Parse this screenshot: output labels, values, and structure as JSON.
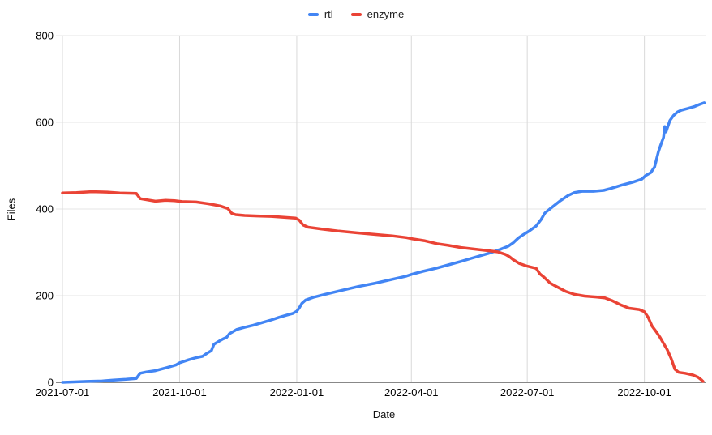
{
  "chart_data": {
    "type": "line",
    "title": "",
    "xlabel": "Date",
    "ylabel": "Files",
    "legend_position": "top-center",
    "grid": true,
    "ylim": [
      0,
      800
    ],
    "y_ticks": [
      0,
      200,
      400,
      600,
      800
    ],
    "x_ticks": [
      "2021-07-01",
      "2021-10-01",
      "2022-01-01",
      "2022-04-01",
      "2022-07-01",
      "2022-10-01"
    ],
    "x_domain": [
      "2021-07-01",
      "2022-11-18"
    ],
    "colors": {
      "grid_h": "#e6e6e6",
      "grid_v": "#d9d9d9",
      "axis_line": "#424242",
      "tick_text": "#000000"
    },
    "series": [
      {
        "name": "rtl",
        "color": "#4285f4",
        "points": [
          [
            "2021-07-01",
            0
          ],
          [
            "2021-07-10",
            1
          ],
          [
            "2021-07-20",
            2
          ],
          [
            "2021-08-01",
            3
          ],
          [
            "2021-08-10",
            5
          ],
          [
            "2021-08-20",
            7
          ],
          [
            "2021-08-28",
            9
          ],
          [
            "2021-08-31",
            21
          ],
          [
            "2021-09-05",
            24
          ],
          [
            "2021-09-12",
            27
          ],
          [
            "2021-09-21",
            34
          ],
          [
            "2021-09-28",
            40
          ],
          [
            "2021-10-01",
            45
          ],
          [
            "2021-10-08",
            52
          ],
          [
            "2021-10-14",
            57
          ],
          [
            "2021-10-19",
            60
          ],
          [
            "2021-10-23",
            68
          ],
          [
            "2021-10-26",
            73
          ],
          [
            "2021-10-28",
            88
          ],
          [
            "2021-11-01",
            95
          ],
          [
            "2021-11-04",
            100
          ],
          [
            "2021-11-07",
            104
          ],
          [
            "2021-11-09",
            112
          ],
          [
            "2021-11-12",
            117
          ],
          [
            "2021-11-15",
            122
          ],
          [
            "2021-11-21",
            127
          ],
          [
            "2021-11-28",
            132
          ],
          [
            "2021-12-05",
            138
          ],
          [
            "2021-12-12",
            144
          ],
          [
            "2021-12-18",
            150
          ],
          [
            "2021-12-24",
            155
          ],
          [
            "2021-12-29",
            159
          ],
          [
            "2022-01-01",
            164
          ],
          [
            "2022-01-03",
            172
          ],
          [
            "2022-01-05",
            182
          ],
          [
            "2022-01-08",
            190
          ],
          [
            "2022-01-14",
            196
          ],
          [
            "2022-01-23",
            203
          ],
          [
            "2022-02-05",
            212
          ],
          [
            "2022-02-18",
            221
          ],
          [
            "2022-03-04",
            229
          ],
          [
            "2022-03-16",
            237
          ],
          [
            "2022-03-28",
            245
          ],
          [
            "2022-04-01",
            249
          ],
          [
            "2022-04-10",
            256
          ],
          [
            "2022-04-20",
            263
          ],
          [
            "2022-04-30",
            271
          ],
          [
            "2022-05-10",
            279
          ],
          [
            "2022-05-19",
            287
          ],
          [
            "2022-05-31",
            297
          ],
          [
            "2022-06-10",
            307
          ],
          [
            "2022-06-16",
            314
          ],
          [
            "2022-06-20",
            322
          ],
          [
            "2022-06-24",
            333
          ],
          [
            "2022-06-28",
            341
          ],
          [
            "2022-07-02",
            348
          ],
          [
            "2022-07-08",
            361
          ],
          [
            "2022-07-12",
            376
          ],
          [
            "2022-07-15",
            391
          ],
          [
            "2022-07-20",
            403
          ],
          [
            "2022-07-27",
            419
          ],
          [
            "2022-08-02",
            431
          ],
          [
            "2022-08-07",
            438
          ],
          [
            "2022-08-13",
            441
          ],
          [
            "2022-08-22",
            441
          ],
          [
            "2022-08-30",
            443
          ],
          [
            "2022-09-04",
            447
          ],
          [
            "2022-09-13",
            455
          ],
          [
            "2022-09-22",
            462
          ],
          [
            "2022-09-29",
            469
          ],
          [
            "2022-10-02",
            477
          ],
          [
            "2022-10-06",
            484
          ],
          [
            "2022-10-09",
            497
          ],
          [
            "2022-10-12",
            532
          ],
          [
            "2022-10-14",
            549
          ],
          [
            "2022-10-16",
            565
          ],
          [
            "2022-10-17",
            590
          ],
          [
            "2022-10-18",
            578
          ],
          [
            "2022-10-21",
            604
          ],
          [
            "2022-10-24",
            616
          ],
          [
            "2022-10-27",
            624
          ],
          [
            "2022-10-30",
            628
          ],
          [
            "2022-11-04",
            632
          ],
          [
            "2022-11-09",
            636
          ],
          [
            "2022-11-13",
            641
          ],
          [
            "2022-11-17",
            645
          ]
        ]
      },
      {
        "name": "enzyme",
        "color": "#ea4335",
        "points": [
          [
            "2021-07-01",
            437
          ],
          [
            "2021-07-12",
            438
          ],
          [
            "2021-07-24",
            440
          ],
          [
            "2021-08-05",
            439
          ],
          [
            "2021-08-15",
            437
          ],
          [
            "2021-08-28",
            436
          ],
          [
            "2021-08-31",
            424
          ],
          [
            "2021-09-06",
            421
          ],
          [
            "2021-09-12",
            418
          ],
          [
            "2021-09-20",
            420
          ],
          [
            "2021-09-27",
            419
          ],
          [
            "2021-10-03",
            417
          ],
          [
            "2021-10-14",
            416
          ],
          [
            "2021-10-24",
            412
          ],
          [
            "2021-11-02",
            407
          ],
          [
            "2021-11-08",
            401
          ],
          [
            "2021-11-11",
            390
          ],
          [
            "2021-11-14",
            387
          ],
          [
            "2021-11-21",
            385
          ],
          [
            "2021-12-01",
            384
          ],
          [
            "2021-12-12",
            383
          ],
          [
            "2021-12-22",
            381
          ],
          [
            "2021-12-31",
            379
          ],
          [
            "2022-01-03",
            374
          ],
          [
            "2022-01-06",
            363
          ],
          [
            "2022-01-10",
            358
          ],
          [
            "2022-01-20",
            354
          ],
          [
            "2022-02-03",
            349
          ],
          [
            "2022-02-17",
            345
          ],
          [
            "2022-03-05",
            341
          ],
          [
            "2022-03-17",
            338
          ],
          [
            "2022-03-28",
            334
          ],
          [
            "2022-04-02",
            331
          ],
          [
            "2022-04-11",
            327
          ],
          [
            "2022-04-21",
            320
          ],
          [
            "2022-04-30",
            316
          ],
          [
            "2022-05-10",
            311
          ],
          [
            "2022-05-19",
            308
          ],
          [
            "2022-05-31",
            304
          ],
          [
            "2022-06-08",
            301
          ],
          [
            "2022-06-14",
            295
          ],
          [
            "2022-06-17",
            290
          ],
          [
            "2022-06-20",
            283
          ],
          [
            "2022-06-25",
            274
          ],
          [
            "2022-07-01",
            268
          ],
          [
            "2022-07-08",
            263
          ],
          [
            "2022-07-11",
            250
          ],
          [
            "2022-07-14",
            243
          ],
          [
            "2022-07-19",
            229
          ],
          [
            "2022-07-24",
            221
          ],
          [
            "2022-07-31",
            210
          ],
          [
            "2022-08-07",
            203
          ],
          [
            "2022-08-15",
            199
          ],
          [
            "2022-08-24",
            197
          ],
          [
            "2022-08-31",
            195
          ],
          [
            "2022-09-06",
            188
          ],
          [
            "2022-09-13",
            178
          ],
          [
            "2022-09-19",
            171
          ],
          [
            "2022-09-27",
            168
          ],
          [
            "2022-10-01",
            163
          ],
          [
            "2022-10-04",
            150
          ],
          [
            "2022-10-07",
            130
          ],
          [
            "2022-10-10",
            118
          ],
          [
            "2022-10-13",
            105
          ],
          [
            "2022-10-16",
            90
          ],
          [
            "2022-10-19",
            75
          ],
          [
            "2022-10-22",
            55
          ],
          [
            "2022-10-25",
            30
          ],
          [
            "2022-10-28",
            23
          ],
          [
            "2022-11-02",
            21
          ],
          [
            "2022-11-08",
            17
          ],
          [
            "2022-11-12",
            12
          ],
          [
            "2022-11-15",
            5
          ],
          [
            "2022-11-16",
            2
          ]
        ]
      }
    ]
  }
}
